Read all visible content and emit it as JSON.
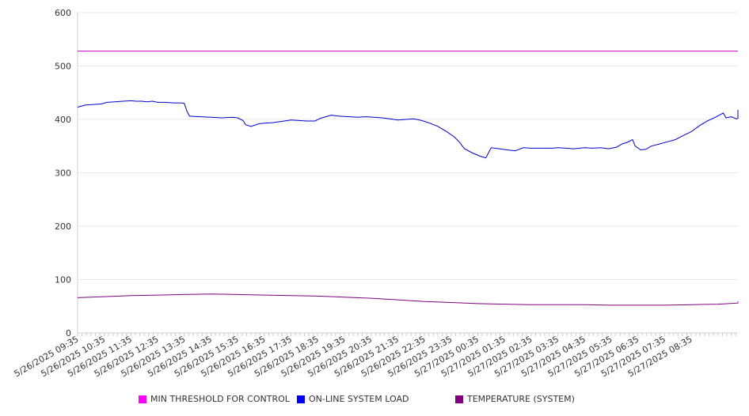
{
  "chart_data": {
    "type": "line",
    "ylim": [
      0,
      600
    ],
    "yticks": [
      0,
      100,
      200,
      300,
      400,
      500,
      600
    ],
    "x_labels": [
      "5/26/2025 09:35",
      "5/26/2025 10:35",
      "5/26/2025 11:35",
      "5/26/2025 12:35",
      "5/26/2025 13:35",
      "5/26/2025 14:35",
      "5/26/2025 15:35",
      "5/26/2025 16:35",
      "5/26/2025 17:35",
      "5/26/2025 18:35",
      "5/26/2025 19:35",
      "5/26/2025 20:35",
      "5/26/2025 21:35",
      "5/26/2025 22:35",
      "5/26/2025 23:35",
      "5/27/2025 00:35",
      "5/27/2025 01:35",
      "5/27/2025 02:35",
      "5/27/2025 03:35",
      "5/27/2025 04:35",
      "5/27/2025 05:35",
      "5/27/2025 06:35",
      "5/27/2025 07:35",
      "5/27/2025 08:35"
    ],
    "grid": true,
    "legend_position": "bottom",
    "series": [
      {
        "name": "MIN THRESHOLD FOR CONTROL",
        "color": "#cc00cc",
        "swatch": "#ff00ff",
        "points": [
          [
            0,
            528
          ],
          [
            24.85,
            528
          ]
        ]
      },
      {
        "name": "ON-LINE SYSTEM LOAD",
        "color": "#0000cc",
        "swatch": "#0000ff",
        "points": [
          [
            0,
            423
          ],
          [
            0.3,
            427
          ],
          [
            0.6,
            428
          ],
          [
            0.9,
            429
          ],
          [
            1.1,
            432
          ],
          [
            1.4,
            433
          ],
          [
            1.7,
            434
          ],
          [
            2.0,
            435
          ],
          [
            2.2,
            434
          ],
          [
            2.4,
            434
          ],
          [
            2.6,
            433
          ],
          [
            2.8,
            434
          ],
          [
            3.0,
            432
          ],
          [
            3.3,
            432
          ],
          [
            3.6,
            431
          ],
          [
            3.9,
            431
          ],
          [
            4.0,
            430
          ],
          [
            4.1,
            415
          ],
          [
            4.2,
            406
          ],
          [
            4.6,
            405
          ],
          [
            5.0,
            404
          ],
          [
            5.4,
            403
          ],
          [
            5.8,
            404
          ],
          [
            6.0,
            403
          ],
          [
            6.2,
            398
          ],
          [
            6.3,
            390
          ],
          [
            6.5,
            387
          ],
          [
            6.8,
            392
          ],
          [
            7.0,
            393
          ],
          [
            7.3,
            394
          ],
          [
            7.6,
            396
          ],
          [
            8.0,
            399
          ],
          [
            8.3,
            398
          ],
          [
            8.6,
            397
          ],
          [
            8.9,
            397
          ],
          [
            9.1,
            402
          ],
          [
            9.3,
            405
          ],
          [
            9.5,
            408
          ],
          [
            9.8,
            406
          ],
          [
            10.2,
            405
          ],
          [
            10.5,
            404
          ],
          [
            10.8,
            405
          ],
          [
            11.1,
            404
          ],
          [
            11.4,
            403
          ],
          [
            11.7,
            401
          ],
          [
            12.0,
            399
          ],
          [
            12.3,
            400
          ],
          [
            12.6,
            401
          ],
          [
            12.9,
            398
          ],
          [
            13.2,
            393
          ],
          [
            13.5,
            387
          ],
          [
            13.8,
            378
          ],
          [
            14.1,
            368
          ],
          [
            14.3,
            358
          ],
          [
            14.5,
            345
          ],
          [
            14.8,
            337
          ],
          [
            15.1,
            331
          ],
          [
            15.3,
            328
          ],
          [
            15.5,
            347
          ],
          [
            15.8,
            345
          ],
          [
            16.1,
            343
          ],
          [
            16.4,
            341
          ],
          [
            16.7,
            347
          ],
          [
            17.0,
            346
          ],
          [
            17.4,
            346
          ],
          [
            17.8,
            346
          ],
          [
            18.0,
            347
          ],
          [
            18.3,
            346
          ],
          [
            18.6,
            345
          ],
          [
            19.0,
            347
          ],
          [
            19.3,
            346
          ],
          [
            19.6,
            347
          ],
          [
            19.9,
            345
          ],
          [
            20.2,
            348
          ],
          [
            20.4,
            354
          ],
          [
            20.6,
            357
          ],
          [
            20.8,
            362
          ],
          [
            20.9,
            350
          ],
          [
            21.1,
            343
          ],
          [
            21.3,
            344
          ],
          [
            21.5,
            350
          ],
          [
            21.8,
            354
          ],
          [
            22.1,
            358
          ],
          [
            22.4,
            362
          ],
          [
            22.7,
            370
          ],
          [
            23.0,
            377
          ],
          [
            23.3,
            388
          ],
          [
            23.6,
            397
          ],
          [
            23.9,
            404
          ],
          [
            24.2,
            412
          ],
          [
            24.3,
            403
          ],
          [
            24.5,
            405
          ],
          [
            24.7,
            401
          ],
          [
            24.9,
            402
          ],
          [
            25.2,
            405
          ],
          [
            25.5,
            410
          ],
          [
            25.7,
            414
          ],
          [
            26.0,
            415
          ],
          [
            26.3,
            417
          ],
          [
            26.6,
            418
          ],
          [
            26.9,
            416
          ],
          [
            27.0,
            417
          ],
          [
            27.2,
            414
          ]
        ]
      },
      {
        "name": "TEMPERATURE (SYSTEM)",
        "color": "#800080",
        "swatch": "#800080",
        "points": [
          [
            0,
            66
          ],
          [
            1,
            68
          ],
          [
            2,
            70
          ],
          [
            3,
            71
          ],
          [
            4,
            72
          ],
          [
            5,
            73
          ],
          [
            6,
            72
          ],
          [
            7,
            71
          ],
          [
            8,
            70
          ],
          [
            9,
            69
          ],
          [
            10,
            67
          ],
          [
            11,
            65
          ],
          [
            12,
            62
          ],
          [
            13,
            59
          ],
          [
            14,
            57
          ],
          [
            15,
            55
          ],
          [
            16,
            54
          ],
          [
            17,
            53
          ],
          [
            18,
            53
          ],
          [
            19,
            53
          ],
          [
            20,
            52
          ],
          [
            21,
            52
          ],
          [
            22,
            52
          ],
          [
            23,
            53
          ],
          [
            24,
            54
          ],
          [
            25,
            56
          ],
          [
            26,
            58
          ],
          [
            27,
            59
          ],
          [
            27.2,
            59
          ]
        ]
      }
    ]
  }
}
